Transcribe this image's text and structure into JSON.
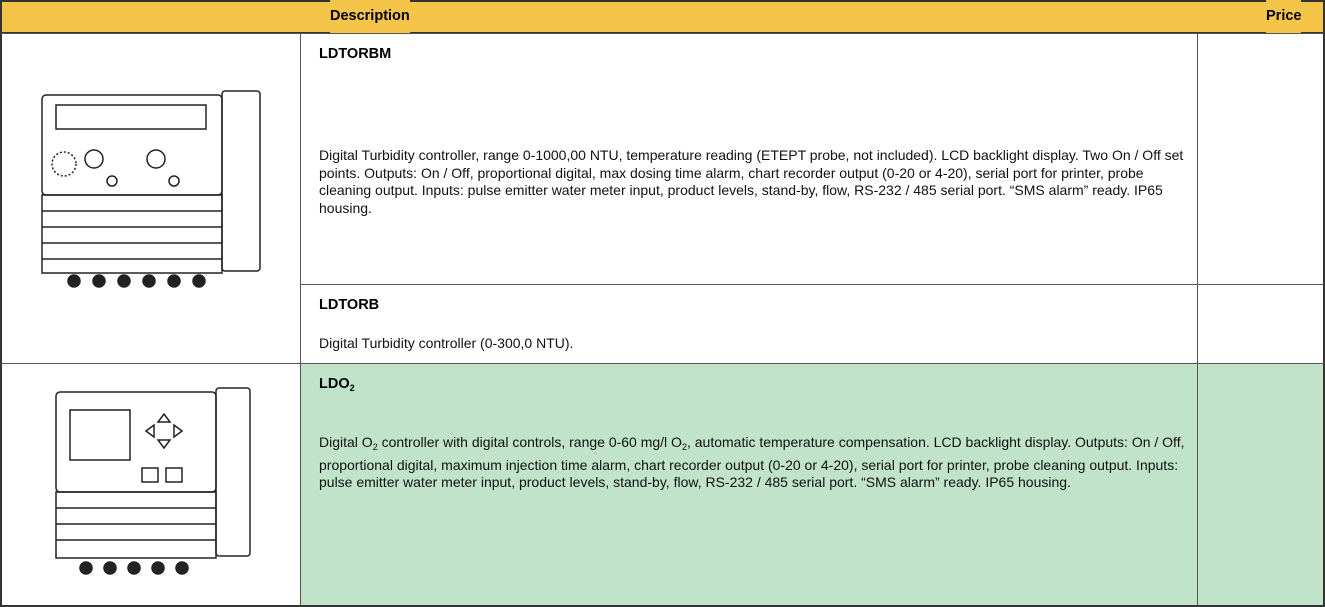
{
  "header": {
    "description": "Description",
    "price": "Price"
  },
  "rows": [
    {
      "code": [
        {
          "text": "LDTORBM"
        }
      ],
      "description": [
        {
          "text": "Digital Turbidity controller, range 0-1000,00 NTU, temperature reading (ETEPT probe, not included). LCD backlight display. Two On / Off set points. Outputs: On / Off, proportional digital, max dosing time alarm, chart recorder output (0-20 or 4-20), serial port for printer, probe cleaning output. Inputs: pulse emitter water meter input, product levels, stand-by, flow, RS-232 / 485 serial port. “SMS alarm” ready. IP65 housing."
        }
      ]
    },
    {
      "code": [
        {
          "text": "LDTORB"
        }
      ],
      "description": [
        {
          "text": "Digital Turbidity controller (0-300,0 NTU)."
        }
      ]
    },
    {
      "code": [
        {
          "text": "LDO"
        },
        {
          "sub": "2"
        }
      ],
      "description": [
        {
          "text": "Digital O"
        },
        {
          "sub": "2"
        },
        {
          "text": " controller with digital controls, range 0-60 mg/l O"
        },
        {
          "sub": "2"
        },
        {
          "text": ", automatic temperature compensation. LCD backlight display. Outputs: On / Off, proportional digital, maximum injection time alarm, chart recorder output (0-20 or 4-20), serial port for printer, probe cleaning output. Inputs: pulse emitter water meter input, product levels, stand-by, flow,  RS-232 / 485 serial port. “SMS alarm” ready. IP65 housing."
        }
      ]
    }
  ]
}
